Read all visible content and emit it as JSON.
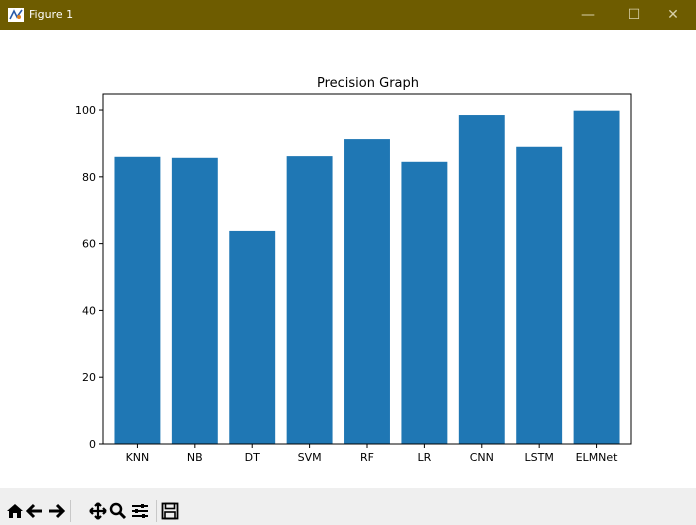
{
  "window": {
    "title": "Figure 1",
    "controls": [
      "—",
      "☐",
      "✕"
    ]
  },
  "toolbar": {
    "buttons": [
      "home-icon",
      "back-arrow-icon",
      "forward-arrow-icon",
      "pan-icon",
      "zoom-icon",
      "configure-subplots-icon",
      "save-icon"
    ]
  },
  "chart_data": {
    "type": "bar",
    "title": "Precision Graph",
    "xlabel": "",
    "ylabel": "",
    "categories": [
      "KNN",
      "NB",
      "DT",
      "SVM",
      "RF",
      "LR",
      "CNN",
      "LSTM",
      "ELMNet"
    ],
    "values": [
      86,
      85.7,
      63.8,
      86.2,
      91.3,
      84.5,
      98.5,
      89,
      99.8
    ],
    "ylim": [
      0,
      104.8
    ],
    "yticks": [
      0,
      20,
      40,
      60,
      80,
      100
    ],
    "bar_color": "#1f77b4",
    "grid": false
  }
}
